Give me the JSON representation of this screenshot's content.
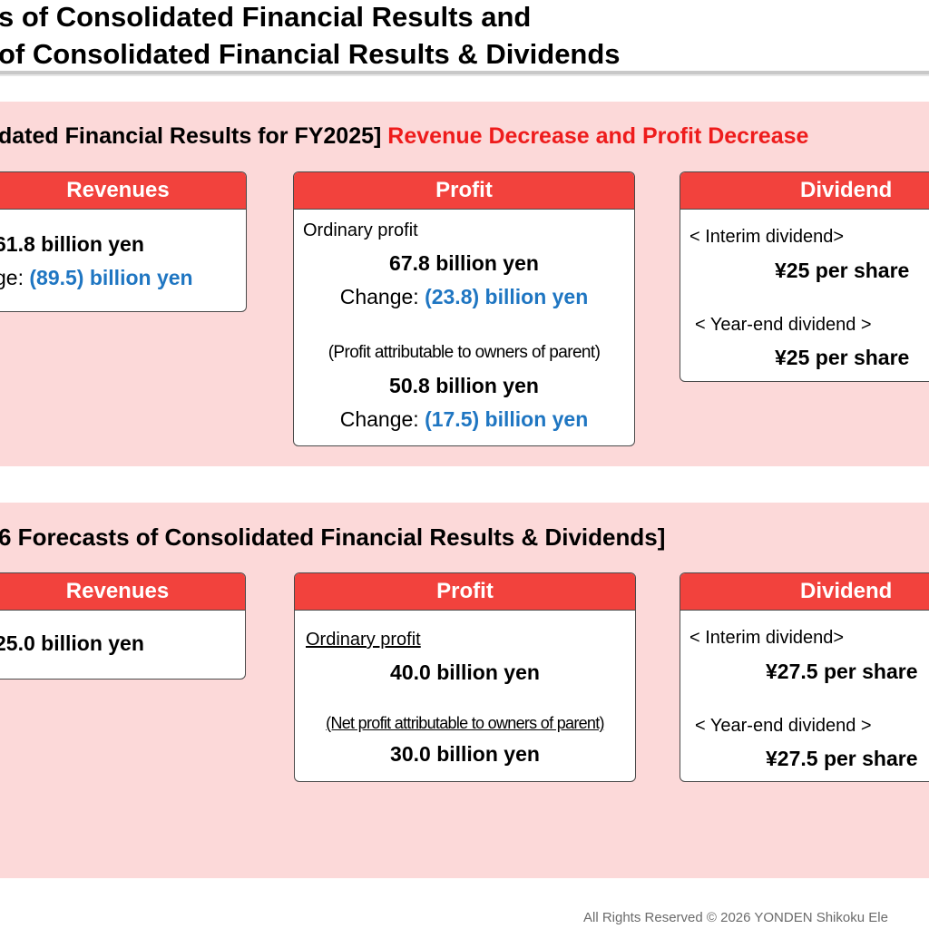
{
  "title": {
    "line1": "s of Consolidated Financial Results and",
    "line2": " of Consolidated Financial Results &  Dividends"
  },
  "fy2025": {
    "heading": "dated Financial Results for FY2025]",
    "heading_red": "Revenue Decrease and Profit Decrease",
    "revenues": {
      "header": "Revenues",
      "value": "61.8 billion yen",
      "change_label": "ge:",
      "change_value": "(89.5) billion yen"
    },
    "profit": {
      "header": "Profit",
      "ordinary_label": "Ordinary profit",
      "ordinary_value": "67.8 billion yen",
      "ordinary_change_label": "Change:",
      "ordinary_change_value": "(23.8) billion yen",
      "parent_label": "(Profit attributable to owners of parent)",
      "parent_value": "50.8 billion yen",
      "parent_change_label": "Change:",
      "parent_change_value": "(17.5) billion yen"
    },
    "dividend": {
      "header": "Dividend",
      "interim_label": "< Interim dividend>",
      "interim_value": "¥25 per share",
      "yearend_label": "< Year-end dividend >",
      "yearend_value": "¥25 per share"
    }
  },
  "forecast": {
    "heading": "6 Forecasts of Consolidated Financial Results &  Dividends]",
    "revenues": {
      "header": "Revenues",
      "value": "25.0 billion yen"
    },
    "profit": {
      "header": "Profit",
      "ordinary_label": "Ordinary profit",
      "ordinary_value": "40.0 billion yen",
      "parent_label": "(Net profit attributable to owners of parent)",
      "parent_value": "30.0 billion yen"
    },
    "dividend": {
      "header": "Dividend",
      "interim_label": "< Interim dividend>",
      "interim_value": "¥27.5 per share",
      "yearend_label": "< Year-end dividend >",
      "yearend_value": "¥27.5 per share"
    }
  },
  "footer": "All Rights Reserved ©  2026 YONDEN Shikoku Ele"
}
